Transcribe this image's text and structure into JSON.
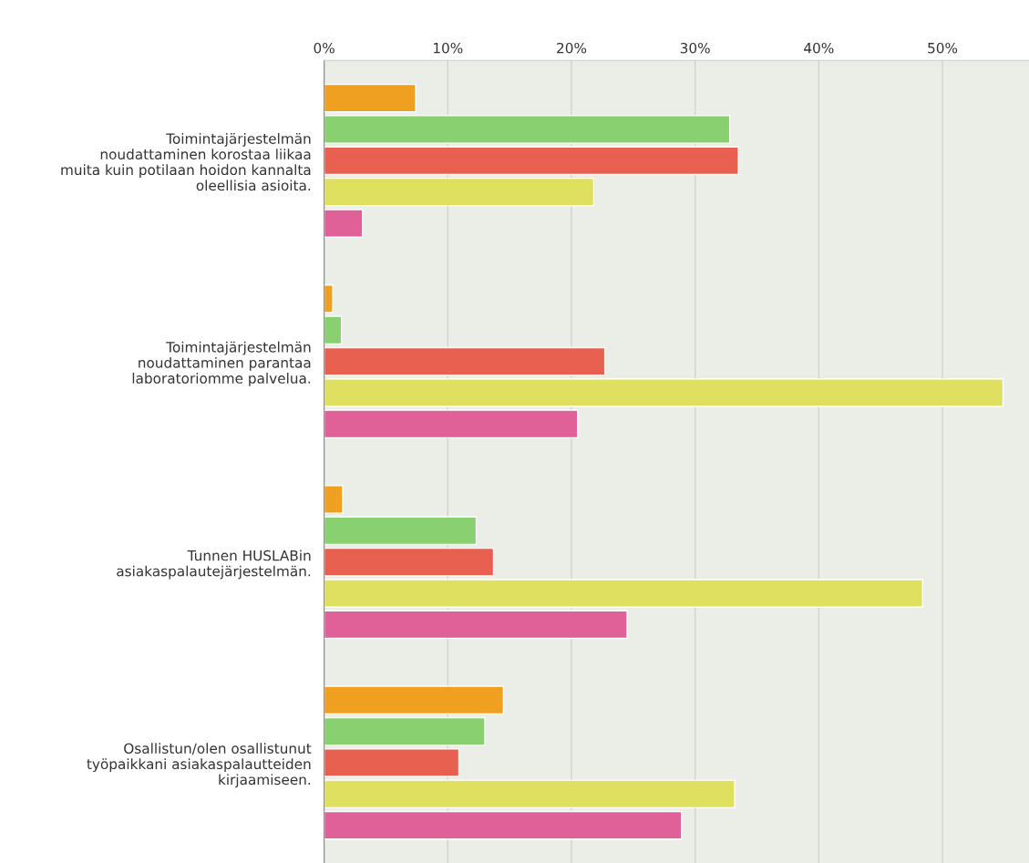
{
  "chart_data": {
    "type": "bar",
    "orientation": "horizontal",
    "categories": [
      "Toimintajärjestelmän\nnoudattaminen korostaa liikaa\nmuita kuin potilaan hoidon kannalta\noleellisia asioita.",
      "Toimintajärjestelmän\nnoudattaminen parantaa\nlaboratoriomme palvelua.",
      "Tunnen HUSLABin\nasiakaspalautejärjestelmän.",
      "Osallistun/olen osallistunut\ntyöpaikkani asiakaspalautteiden\nkirjaamiseen."
    ],
    "series": [
      {
        "color": "#f0a020",
        "values": [
          7.4,
          0.7,
          1.5,
          14.5
        ]
      },
      {
        "color": "#88d070",
        "values": [
          32.8,
          1.4,
          12.3,
          13.0
        ]
      },
      {
        "color": "#e86050",
        "values": [
          33.5,
          22.7,
          13.7,
          10.9
        ]
      },
      {
        "color": "#e0e060",
        "values": [
          21.8,
          54.9,
          48.4,
          33.2
        ]
      },
      {
        "color": "#e06098",
        "values": [
          3.1,
          20.5,
          24.5,
          28.9
        ]
      }
    ],
    "xlim": [
      0,
      57
    ],
    "xticks": [
      {
        "value": 0,
        "label": "0%"
      },
      {
        "value": 10,
        "label": "10%"
      },
      {
        "value": 20,
        "label": "20%"
      },
      {
        "value": 30,
        "label": "30%"
      },
      {
        "value": 40,
        "label": "40%"
      },
      {
        "value": 50,
        "label": "50%"
      }
    ],
    "grid": "x",
    "legend": false
  }
}
